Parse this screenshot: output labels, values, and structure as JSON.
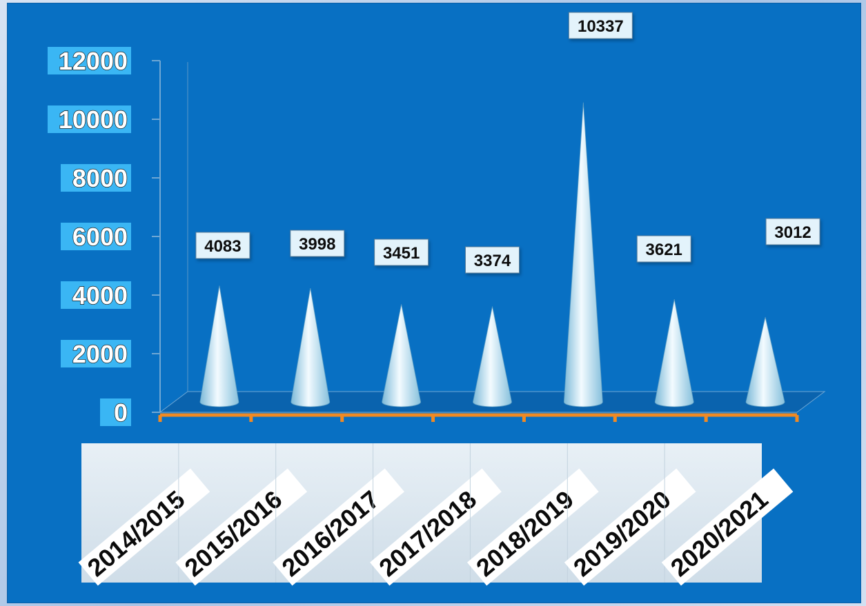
{
  "chart_data": {
    "type": "bar",
    "style": "3d-cone",
    "title": "",
    "xlabel": "",
    "ylabel": "",
    "categories": [
      "2014/2015",
      "2015/2016",
      "2016/2017",
      "2017/2018",
      "2018/2019",
      "2019/2020",
      "2020/2021"
    ],
    "values": [
      4083,
      3998,
      3451,
      3374,
      10337,
      3621,
      3012
    ],
    "data_labels": [
      "4083",
      "3998",
      "3451",
      "3374",
      "10337",
      "3621",
      "3012"
    ],
    "ylim": [
      0,
      12000
    ],
    "yticks": [
      0,
      2000,
      4000,
      6000,
      8000,
      10000,
      12000
    ],
    "ytick_labels": [
      "0",
      "2000",
      "4000",
      "6000",
      "8000",
      "10000",
      "12000"
    ],
    "grid": false,
    "legend": "none",
    "colors": {
      "background": "#0870c3",
      "cone_light": "#f3fbff",
      "cone_dark": "#7cb9d8",
      "x_axis": "#f08a24",
      "tick_box": "#3ab6f4",
      "label_box": "#e3f3fb",
      "category_band": "#dde8f0"
    }
  }
}
